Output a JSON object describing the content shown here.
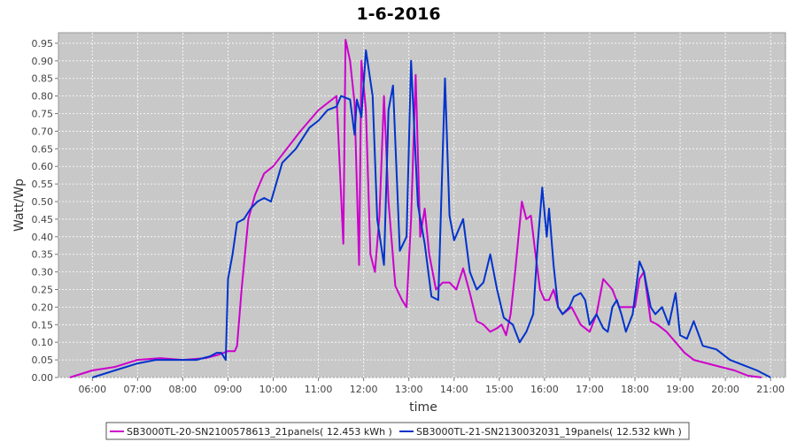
{
  "chart_data": {
    "type": "line",
    "title": "1-6-2016",
    "xlabel": "time",
    "ylabel": "Watt/Wp",
    "x_tick_labels": [
      "06:00",
      "07:00",
      "08:00",
      "09:00",
      "10:00",
      "11:00",
      "12:00",
      "13:00",
      "14:00",
      "15:00",
      "16:00",
      "17:00",
      "18:00",
      "19:00",
      "20:00",
      "21:00"
    ],
    "y_ticks": [
      0.0,
      0.05,
      0.1,
      0.15,
      0.2,
      0.25,
      0.3,
      0.35,
      0.4,
      0.45,
      0.5,
      0.55,
      0.6,
      0.65,
      0.7,
      0.75,
      0.8,
      0.85,
      0.9,
      0.95
    ],
    "y_tick_labels": [
      "0.00",
      "0.05",
      "0.10",
      "0.15",
      "0.20",
      "0.25",
      "0.30",
      "0.35",
      "0.40",
      "0.45",
      "0.50",
      "0.55",
      "0.60",
      "0.65",
      "0.70",
      "0.75",
      "0.80",
      "0.85",
      "0.90",
      "0.95"
    ],
    "xlim": [
      5.25,
      21.33
    ],
    "ylim": [
      0,
      0.98
    ],
    "grid": true,
    "legend_position": "bottom",
    "series": [
      {
        "name": "SB3000TL-20-SN2100578613_21panels( 12.453 kWh )",
        "color": "#cc00cc",
        "x": [
          5.5,
          6.0,
          6.5,
          7.0,
          7.5,
          8.0,
          8.5,
          8.8,
          9.0,
          9.15,
          9.2,
          9.3,
          9.45,
          9.6,
          9.8,
          10.0,
          10.3,
          10.6,
          10.8,
          11.0,
          11.2,
          11.4,
          11.55,
          11.6,
          11.7,
          11.8,
          11.9,
          11.95,
          12.05,
          12.15,
          12.25,
          12.35,
          12.45,
          12.55,
          12.7,
          12.85,
          12.95,
          13.05,
          13.15,
          13.25,
          13.35,
          13.45,
          13.6,
          13.75,
          13.9,
          14.05,
          14.2,
          14.35,
          14.5,
          14.65,
          14.8,
          14.95,
          15.05,
          15.15,
          15.25,
          15.35,
          15.5,
          15.6,
          15.7,
          15.8,
          15.9,
          16.0,
          16.1,
          16.2,
          16.3,
          16.4,
          16.6,
          16.8,
          17.0,
          17.15,
          17.3,
          17.5,
          17.65,
          17.8,
          18.0,
          18.1,
          18.2,
          18.35,
          18.5,
          18.7,
          18.9,
          19.1,
          19.3,
          19.6,
          19.9,
          20.2,
          20.5,
          20.8
        ],
        "values": [
          0.0,
          0.02,
          0.03,
          0.05,
          0.055,
          0.05,
          0.055,
          0.065,
          0.075,
          0.075,
          0.09,
          0.25,
          0.45,
          0.52,
          0.58,
          0.6,
          0.65,
          0.7,
          0.73,
          0.76,
          0.78,
          0.8,
          0.38,
          0.96,
          0.9,
          0.78,
          0.32,
          0.9,
          0.76,
          0.35,
          0.3,
          0.46,
          0.8,
          0.5,
          0.26,
          0.22,
          0.2,
          0.45,
          0.86,
          0.4,
          0.48,
          0.35,
          0.25,
          0.27,
          0.27,
          0.25,
          0.31,
          0.24,
          0.16,
          0.15,
          0.13,
          0.14,
          0.15,
          0.12,
          0.18,
          0.3,
          0.5,
          0.45,
          0.46,
          0.35,
          0.25,
          0.22,
          0.22,
          0.25,
          0.2,
          0.18,
          0.2,
          0.15,
          0.13,
          0.18,
          0.28,
          0.25,
          0.2,
          0.2,
          0.2,
          0.28,
          0.3,
          0.16,
          0.15,
          0.13,
          0.1,
          0.07,
          0.05,
          0.04,
          0.03,
          0.02,
          0.005,
          0.0
        ]
      },
      {
        "name": "SB3000TL-21-SN2130032031_19panels( 12.532 kWh )",
        "color": "#0033cc",
        "x": [
          6.0,
          6.5,
          7.0,
          7.4,
          7.7,
          8.0,
          8.3,
          8.6,
          8.75,
          8.85,
          8.95,
          9.0,
          9.1,
          9.2,
          9.35,
          9.5,
          9.65,
          9.8,
          9.95,
          10.2,
          10.5,
          10.8,
          11.0,
          11.2,
          11.4,
          11.5,
          11.7,
          11.8,
          11.85,
          11.95,
          12.05,
          12.2,
          12.3,
          12.45,
          12.55,
          12.65,
          12.8,
          12.95,
          13.05,
          13.2,
          13.35,
          13.5,
          13.65,
          13.8,
          13.9,
          14.0,
          14.2,
          14.35,
          14.5,
          14.65,
          14.8,
          14.95,
          15.1,
          15.3,
          15.45,
          15.6,
          15.75,
          15.85,
          15.95,
          16.05,
          16.1,
          16.2,
          16.3,
          16.4,
          16.55,
          16.65,
          16.8,
          16.9,
          17.0,
          17.15,
          17.3,
          17.4,
          17.5,
          17.6,
          17.7,
          17.8,
          17.95,
          18.1,
          18.2,
          18.35,
          18.45,
          18.6,
          18.75,
          18.9,
          19.0,
          19.15,
          19.3,
          19.5,
          19.8,
          20.1,
          20.4,
          20.7,
          21.0
        ],
        "values": [
          0.0,
          0.02,
          0.04,
          0.05,
          0.05,
          0.05,
          0.05,
          0.06,
          0.07,
          0.07,
          0.05,
          0.28,
          0.35,
          0.44,
          0.45,
          0.48,
          0.5,
          0.51,
          0.5,
          0.61,
          0.65,
          0.71,
          0.73,
          0.76,
          0.77,
          0.8,
          0.79,
          0.69,
          0.79,
          0.74,
          0.93,
          0.8,
          0.45,
          0.32,
          0.76,
          0.83,
          0.36,
          0.4,
          0.9,
          0.49,
          0.38,
          0.23,
          0.22,
          0.85,
          0.46,
          0.39,
          0.45,
          0.3,
          0.25,
          0.27,
          0.35,
          0.25,
          0.17,
          0.15,
          0.1,
          0.13,
          0.18,
          0.38,
          0.54,
          0.4,
          0.48,
          0.32,
          0.2,
          0.18,
          0.2,
          0.23,
          0.24,
          0.22,
          0.15,
          0.18,
          0.14,
          0.13,
          0.2,
          0.22,
          0.18,
          0.13,
          0.18,
          0.33,
          0.3,
          0.2,
          0.18,
          0.2,
          0.15,
          0.24,
          0.12,
          0.11,
          0.16,
          0.09,
          0.08,
          0.05,
          0.035,
          0.02,
          0.0
        ]
      }
    ]
  }
}
